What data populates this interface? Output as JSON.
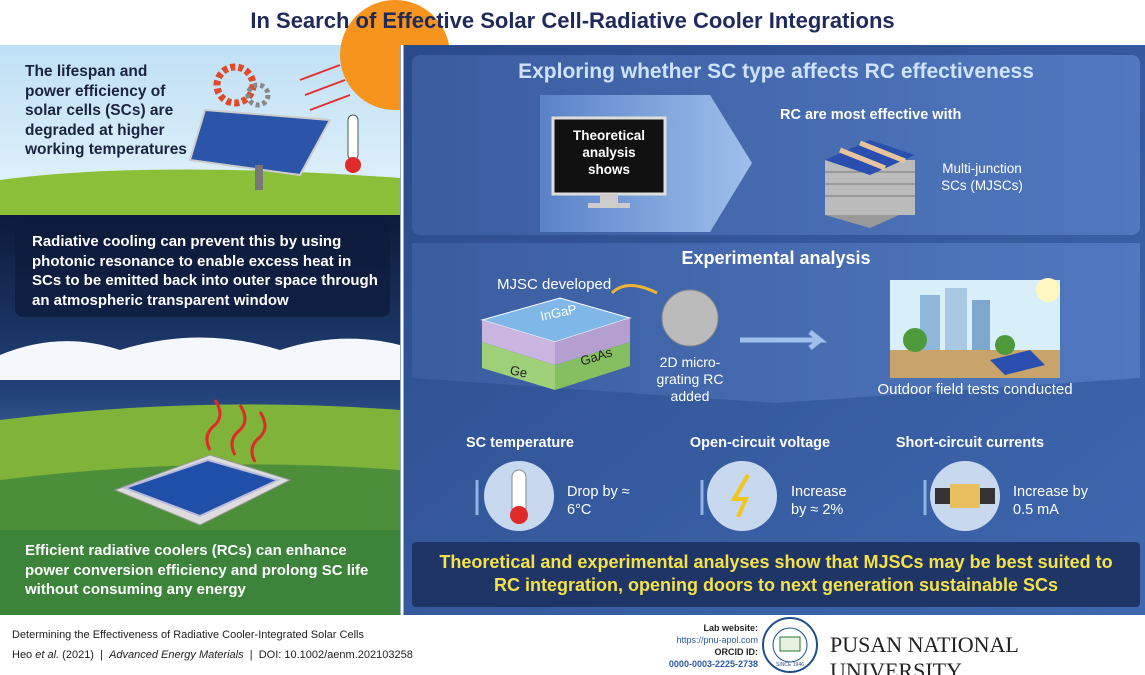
{
  "header": {
    "title": "In Search of Effective Solar Cell-Radiative Cooler Integrations"
  },
  "left": {
    "top_text": "The lifespan and power efficiency of solar cells (SCs) are degraded at higher working temperatures",
    "middle_text": "Radiative cooling can prevent this by using photonic resonance to enable excess heat in SCs to be emitted back into outer space through an atmospheric transparent window",
    "bottom_text": "Efficient radiative coolers (RCs) can enhance power conversion efficiency and prolong SC life without consuming any energy"
  },
  "theory": {
    "heading": "Exploring whether SC type affects RC effectiveness",
    "monitor_text": "Theoretical analysis shows",
    "result_intro": "RC are most effective with",
    "result": "Multi-junction SCs (MJSCs)"
  },
  "experiment": {
    "heading": "Experimental analysis",
    "developed": "MJSC developed",
    "layers": [
      "InGaP",
      "GaAs",
      "Ge"
    ],
    "grating": "2D micro-grating RC added",
    "field": "Outdoor field tests conducted",
    "metrics": [
      {
        "name": "SC temperature",
        "result": "Drop by ≈ 6°C"
      },
      {
        "name": "Open-circuit voltage",
        "result": "Increase by ≈ 2%"
      },
      {
        "name": "Short-circuit currents",
        "result": "Increase by 0.5 mA"
      }
    ]
  },
  "conclusion": "Theoretical and experimental analyses show that MJSCs may be best suited to RC integration, opening doors to next generation sustainable SCs",
  "footer": {
    "paper_title": "Determining the Effectiveness of Radiative Cooler-Integrated Solar Cells",
    "author": "Heo",
    "etal": "et al.",
    "year": "(2021)",
    "separator": "|",
    "journal": "Advanced Energy Materials",
    "doi": "DOI: 10.1002/aenm.202103258",
    "lab_label": "Lab website:",
    "lab_url": "https://pnu-apol.com",
    "orcid_label": "ORCID ID:",
    "orcid": "0000-0003-2225-2738",
    "university": "PUSAN NATIONAL UNIVERSITY",
    "since": "SINCE 1946"
  }
}
